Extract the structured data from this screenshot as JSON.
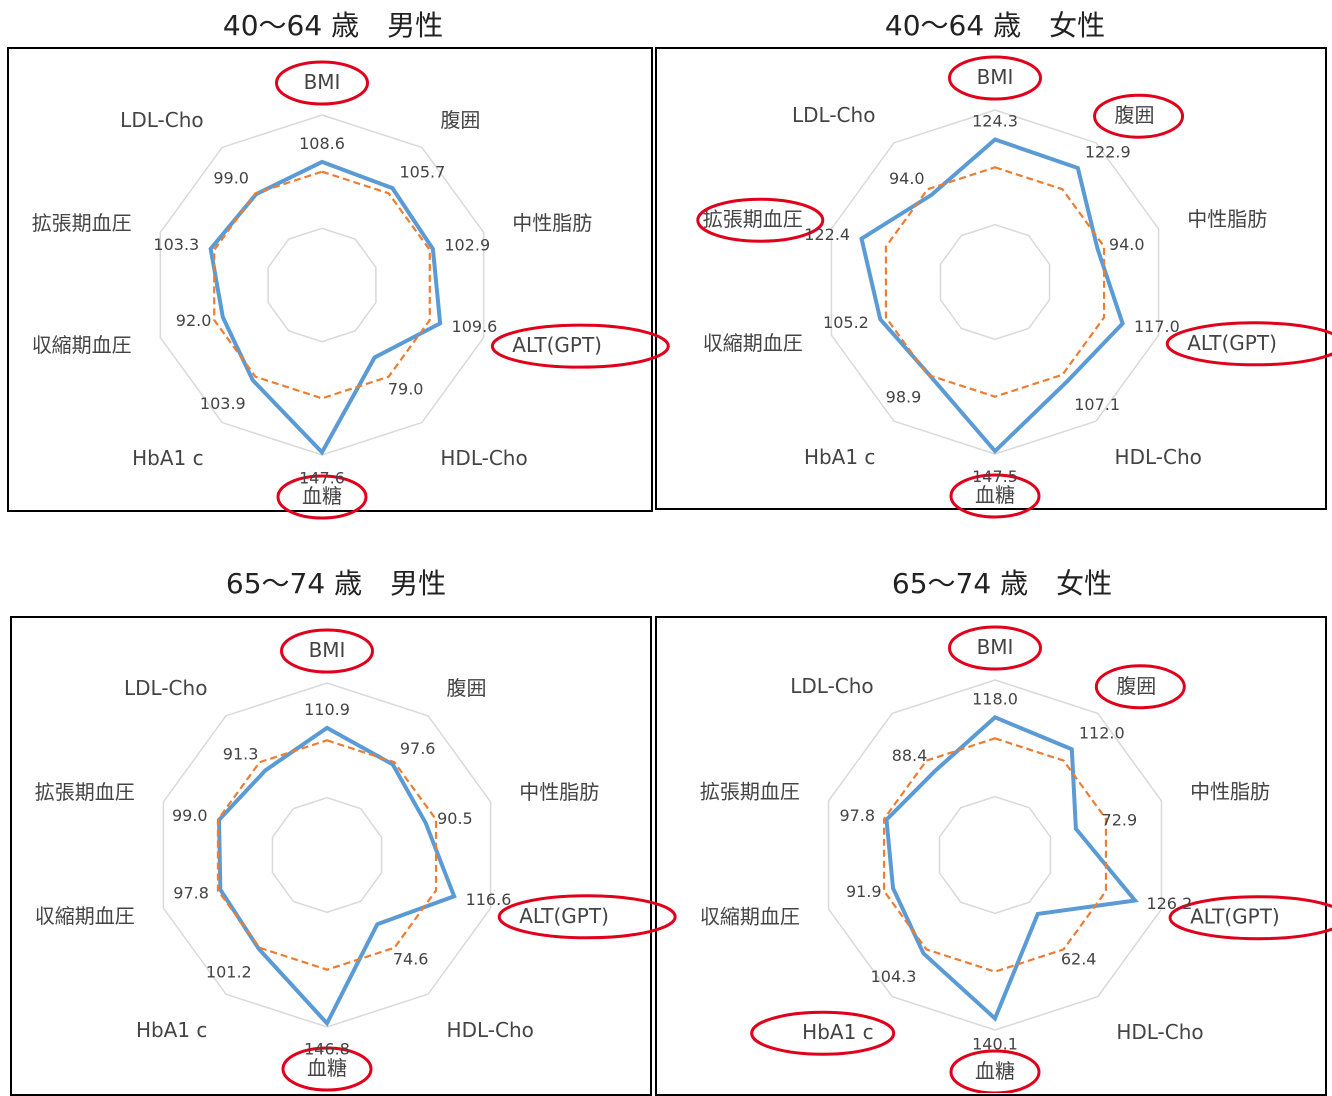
{
  "chart_data": [
    {
      "type": "radar",
      "title": "40～64 歳　男性",
      "axes": [
        "BMI",
        "腹囲",
        "中性脂肪",
        "ALT(GPT)",
        "HDL-Cho",
        "血糖",
        "HbA1 c",
        "収縮期血圧",
        "拡張期血圧",
        "LDL-Cho"
      ],
      "series": [
        {
          "values": [
            108.6,
            105.7,
            102.9,
            109.6,
            79.0,
            147.6,
            103.9,
            92.0,
            103.3,
            99.0
          ],
          "color": "#5b9bd5",
          "style": "solid"
        },
        {
          "values": [
            100,
            100,
            100,
            100,
            100,
            100,
            100,
            100,
            100,
            100
          ],
          "color": "#ed7d31",
          "style": "dashed"
        }
      ],
      "data_labels": [
        "108.6",
        "105.7",
        "102.9",
        "109.6",
        "79.0",
        "147.6",
        "103.9",
        "92.0",
        "103.3",
        "99.0"
      ],
      "highlighted_axes": [
        "BMI",
        "ALT(GPT)",
        "血糖"
      ]
    },
    {
      "type": "radar",
      "title": "40～64 歳　女性",
      "axes": [
        "BMI",
        "腹囲",
        "中性脂肪",
        "ALT(GPT)",
        "HDL-Cho",
        "血糖",
        "HbA1 c",
        "収縮期血圧",
        "拡張期血圧",
        "LDL-Cho"
      ],
      "series": [
        {
          "values": [
            124.3,
            122.9,
            94.0,
            117.0,
            107.1,
            147.5,
            98.9,
            105.2,
            122.4,
            94.0
          ],
          "color": "#5b9bd5",
          "style": "solid"
        },
        {
          "values": [
            100,
            100,
            100,
            100,
            100,
            100,
            100,
            100,
            100,
            100
          ],
          "color": "#ed7d31",
          "style": "dashed"
        }
      ],
      "data_labels": [
        "124.3",
        "122.9",
        "94.0",
        "117.0",
        "107.1",
        "147.5",
        "98.9",
        "105.2",
        "122.4",
        "94.0"
      ],
      "highlighted_axes": [
        "BMI",
        "腹囲",
        "拡張期血圧",
        "ALT(GPT)",
        "血糖"
      ]
    },
    {
      "type": "radar",
      "title": "65～74 歳　男性",
      "axes": [
        "BMI",
        "腹囲",
        "中性脂肪",
        "ALT(GPT)",
        "HDL-Cho",
        "血糖",
        "HbA1 c",
        "収縮期血圧",
        "拡張期血圧",
        "LDL-Cho"
      ],
      "series": [
        {
          "values": [
            110.9,
            97.6,
            90.5,
            116.6,
            74.6,
            146.8,
            101.2,
            97.8,
            99.0,
            91.3
          ],
          "color": "#5b9bd5",
          "style": "solid"
        },
        {
          "values": [
            100,
            100,
            100,
            100,
            100,
            100,
            100,
            100,
            100,
            100
          ],
          "color": "#ed7d31",
          "style": "dashed"
        }
      ],
      "data_labels": [
        "110.9",
        "97.6",
        "90.5",
        "116.6",
        "74.6",
        "146.8",
        "101.2",
        "97.8",
        "99.0",
        "91.3"
      ],
      "highlighted_axes": [
        "BMI",
        "ALT(GPT)",
        "血糖"
      ]
    },
    {
      "type": "radar",
      "title": "65～74 歳　女性",
      "axes": [
        "BMI",
        "腹囲",
        "中性脂肪",
        "ALT(GPT)",
        "HDL-Cho",
        "血糖",
        "HbA1 c",
        "収縮期血圧",
        "拡張期血圧",
        "LDL-Cho"
      ],
      "series": [
        {
          "values": [
            118.0,
            112.0,
            72.9,
            126.2,
            62.4,
            140.1,
            104.3,
            91.9,
            97.8,
            88.4
          ],
          "color": "#5b9bd5",
          "style": "solid"
        },
        {
          "values": [
            100,
            100,
            100,
            100,
            100,
            100,
            100,
            100,
            100,
            100
          ],
          "color": "#ed7d31",
          "style": "dashed"
        }
      ],
      "data_labels": [
        "118.0",
        "112.0",
        "72.9",
        "126.2",
        "62.4",
        "140.1",
        "104.3",
        "91.9",
        "97.8",
        "88.4"
      ],
      "highlighted_axes": [
        "BMI",
        "腹囲",
        "ALT(GPT)",
        "HbA1 c",
        "血糖"
      ]
    }
  ],
  "colors": {
    "actual": "#5b9bd5",
    "reference": "#ed7d31",
    "highlight": "#e0001b",
    "grid": "#d9d9d9"
  }
}
